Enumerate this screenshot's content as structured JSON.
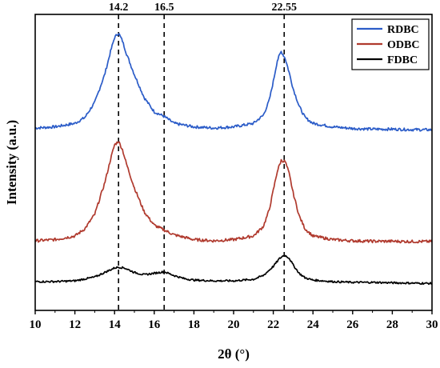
{
  "chart_data": {
    "type": "line",
    "xlabel": "2θ (°)",
    "ylabel": "Intensity (a.u.)",
    "xlim": [
      10,
      30
    ],
    "xticks": [
      10,
      12,
      14,
      16,
      18,
      20,
      22,
      24,
      26,
      28,
      30
    ],
    "y_ticks_labeled": false,
    "grid": false,
    "legend_position": "top-right",
    "reference_lines": [
      {
        "x": 14.2,
        "label": "14.2"
      },
      {
        "x": 16.5,
        "label": "16.5"
      },
      {
        "x": 22.55,
        "label": "22.55"
      }
    ],
    "series": [
      {
        "name": "RDBC",
        "color": "#2b5cc8",
        "x": [
          10,
          11,
          12,
          12.5,
          13,
          13.5,
          13.8,
          14.0,
          14.2,
          14.4,
          14.6,
          15.0,
          15.5,
          16.0,
          16.5,
          17.0,
          18.0,
          19.0,
          20.0,
          21.0,
          21.5,
          21.8,
          22.0,
          22.2,
          22.4,
          22.6,
          22.8,
          23.0,
          23.3,
          23.6,
          24.0,
          25.0,
          26.0,
          27.0,
          28.0,
          29.0,
          30.0
        ],
        "y": [
          1.0,
          1.05,
          1.2,
          1.45,
          2.1,
          3.3,
          4.3,
          4.9,
          5.1,
          4.75,
          4.2,
          3.3,
          2.3,
          1.7,
          1.5,
          1.2,
          1.05,
          1.0,
          1.05,
          1.2,
          1.55,
          2.2,
          3.0,
          3.9,
          4.3,
          4.0,
          3.4,
          2.7,
          1.95,
          1.45,
          1.2,
          1.05,
          0.98,
          0.95,
          0.95,
          0.93,
          0.92
        ]
      },
      {
        "name": "ODBC",
        "color": "#b03a2e",
        "x": [
          10,
          11,
          12,
          12.5,
          13,
          13.5,
          13.8,
          14.0,
          14.2,
          14.4,
          14.6,
          15.0,
          15.5,
          16.0,
          16.5,
          17.0,
          18.0,
          19.0,
          20.0,
          21.0,
          21.5,
          21.8,
          22.0,
          22.2,
          22.4,
          22.6,
          22.8,
          23.0,
          23.3,
          23.6,
          24.0,
          25.0,
          26.0,
          27.0,
          28.0,
          29.0,
          30.0
        ],
        "y": [
          0.9,
          0.95,
          1.1,
          1.4,
          2.0,
          3.3,
          4.3,
          4.9,
          5.05,
          4.7,
          4.1,
          3.1,
          2.1,
          1.55,
          1.35,
          1.15,
          0.95,
          0.9,
          0.95,
          1.1,
          1.5,
          2.2,
          3.0,
          3.8,
          4.25,
          4.2,
          3.7,
          2.9,
          1.95,
          1.4,
          1.1,
          0.95,
          0.9,
          0.88,
          0.88,
          0.87,
          0.87
        ]
      },
      {
        "name": "FDBC",
        "color": "#000000",
        "x": [
          10,
          11,
          12,
          13,
          13.5,
          14.0,
          14.2,
          14.5,
          15.0,
          15.5,
          16.0,
          16.5,
          17.0,
          17.5,
          18.0,
          19.0,
          20.0,
          21.0,
          21.5,
          22.0,
          22.3,
          22.55,
          22.8,
          23.0,
          23.3,
          23.6,
          24.0,
          25.0,
          26.0,
          27.0,
          28.0,
          29.0,
          30.0
        ],
        "y": [
          1.0,
          1.0,
          1.05,
          1.3,
          1.6,
          1.9,
          1.95,
          1.9,
          1.6,
          1.45,
          1.55,
          1.65,
          1.4,
          1.2,
          1.1,
          1.05,
          1.05,
          1.15,
          1.4,
          2.0,
          2.5,
          2.75,
          2.55,
          2.1,
          1.55,
          1.25,
          1.1,
          1.0,
          0.95,
          0.95,
          0.92,
          0.9,
          0.88
        ]
      }
    ]
  }
}
